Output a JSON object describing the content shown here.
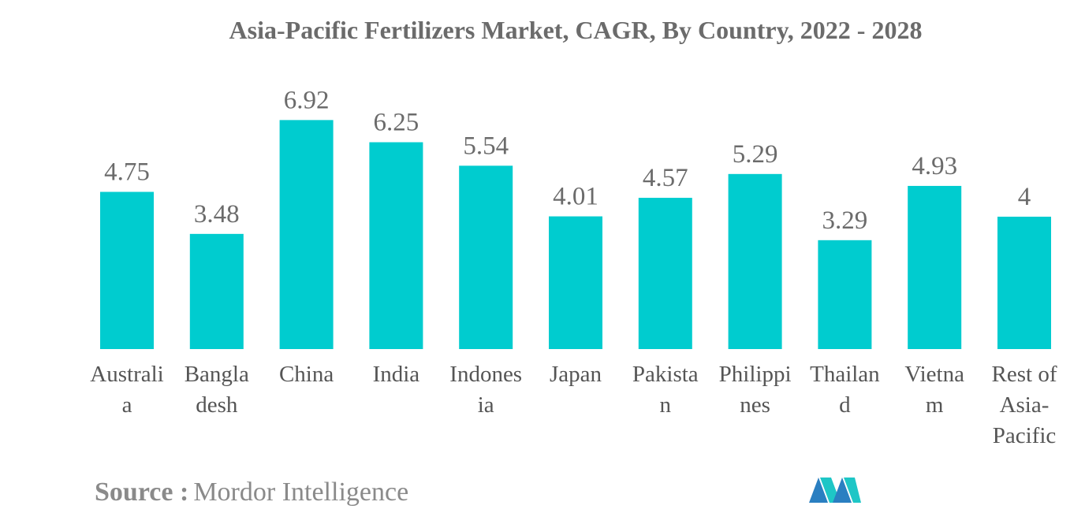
{
  "chart_data": {
    "type": "bar",
    "title": "Asia-Pacific Fertilizers Market, CAGR, By Country, 2022 - 2028",
    "xlabel": "",
    "ylabel": "",
    "ylim": [
      0,
      7.5
    ],
    "grid": false,
    "categories": [
      [
        "Australi",
        "a"
      ],
      [
        "Bangla",
        "desh"
      ],
      [
        "China"
      ],
      [
        "India"
      ],
      [
        "Indones",
        "ia"
      ],
      [
        "Japan"
      ],
      [
        "Pakista",
        "n"
      ],
      [
        "Philippi",
        "nes"
      ],
      [
        "Thailan",
        "d"
      ],
      [
        "Vietna",
        "m"
      ],
      [
        "Rest of",
        "Asia-",
        "Pacific"
      ]
    ],
    "values": [
      4.75,
      3.48,
      6.92,
      6.25,
      5.54,
      4.01,
      4.57,
      5.29,
      3.29,
      4.93,
      4
    ],
    "value_labels": [
      "4.75",
      "3.48",
      "6.92",
      "6.25",
      "5.54",
      "4.01",
      "4.57",
      "5.29",
      "3.29",
      "4.93",
      "4"
    ],
    "bar_color": "#00cccf"
  },
  "source": {
    "label": "Source :",
    "value": "Mordor Intelligence"
  },
  "logo": {
    "icon": "mordor-intelligence-logo-icon",
    "colors": [
      "#2a7fc1",
      "#1ec6c6"
    ]
  }
}
